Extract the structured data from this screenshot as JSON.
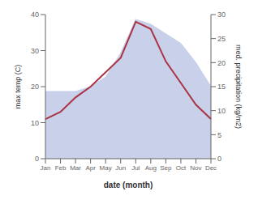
{
  "chart_data": {
    "type": "line",
    "xlabel": "date (month)",
    "ylabel": "max temp (C)",
    "y2label": "med. precipitation (kg/m2)",
    "categories": [
      "Jan",
      "Feb",
      "Mar",
      "Apr",
      "May",
      "Jun",
      "Jul",
      "Aug",
      "Sep",
      "Oct",
      "Nov",
      "Dec"
    ],
    "series": [
      {
        "type": "area",
        "axis": "y2",
        "color": "#c8d0ea",
        "values": [
          14,
          14,
          14,
          15,
          17,
          22,
          29,
          28,
          26,
          24,
          20,
          15
        ]
      },
      {
        "type": "line",
        "color": "#aa3344",
        "values": [
          11,
          13,
          17,
          20,
          24,
          28,
          38,
          36,
          27,
          21,
          15,
          11
        ]
      }
    ],
    "ylim": [
      0,
      40
    ],
    "yticks": [
      0,
      10,
      20,
      30,
      40
    ],
    "y2lim": [
      0,
      30
    ],
    "y2ticks": [
      0,
      5,
      10,
      15,
      20,
      25,
      30
    ],
    "grid": false
  }
}
